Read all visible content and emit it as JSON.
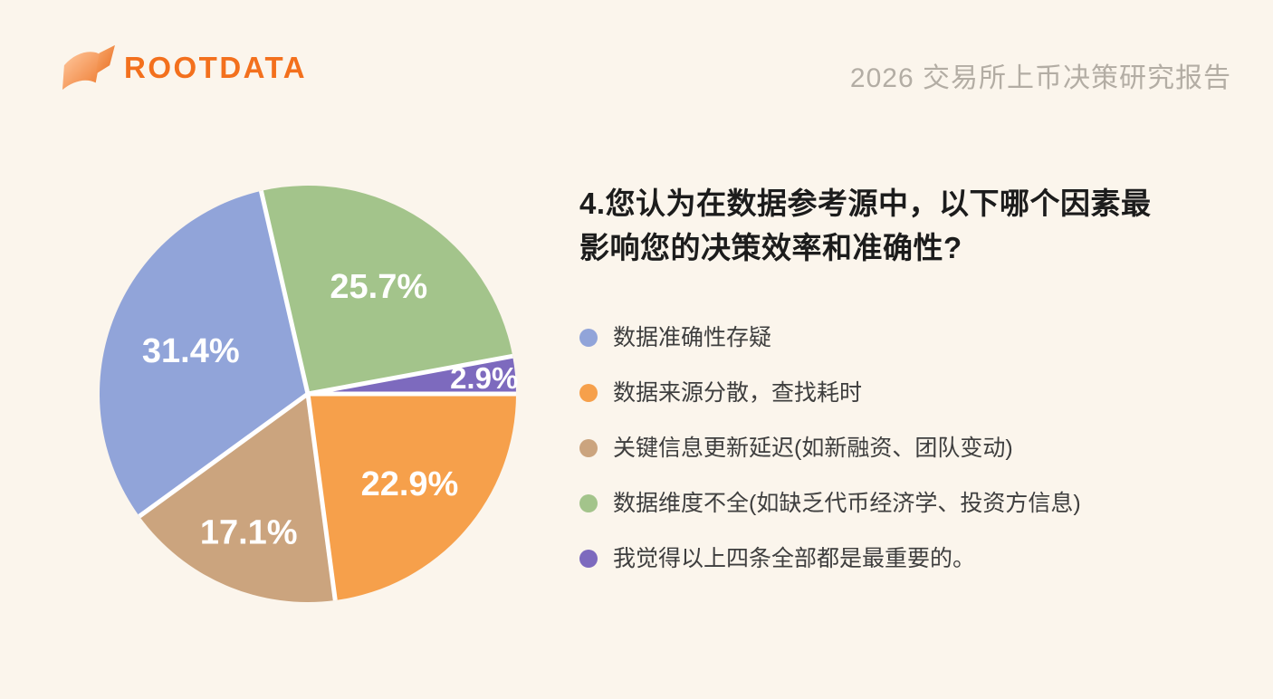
{
  "header": {
    "logo_text": "ROOTDATA",
    "report_title": "2026 交易所上币决策研究报告"
  },
  "question": {
    "title": "4.您认为在数据参考源中，以下哪个因素最影响您的决策效率和准确性?"
  },
  "chart_data": {
    "type": "pie",
    "title": "4.您认为在数据参考源中，以下哪个因素最影响您的决策效率和准确性?",
    "unit": "%",
    "direction": "clockwise",
    "start_angle_deg": -12.96,
    "legend_position": "right",
    "slices": [
      {
        "label": "数据维度不全(如缺乏代币经济学、投资方信息)",
        "value": 25.7,
        "display": "25.7%",
        "color": "#a3c48b",
        "label_r": 0.62
      },
      {
        "label": "我觉得以上四条全部都是最重要的。",
        "value": 2.9,
        "display": "2.9%",
        "color": "#7d6abe",
        "label_r": 0.85
      },
      {
        "label": "数据来源分散，查找耗时",
        "value": 22.9,
        "display": "22.9%",
        "color": "#f6a04b",
        "label_r": 0.65
      },
      {
        "label": "关键信息更新延迟(如新融资、团队变动)",
        "value": 17.1,
        "display": "17.1%",
        "color": "#cba47e",
        "label_r": 0.72
      },
      {
        "label": "数据准确性存疑",
        "value": 31.4,
        "display": "31.4%",
        "color": "#91a4d9",
        "label_r": 0.6
      }
    ],
    "legend_order": [
      4,
      2,
      3,
      0,
      1
    ]
  },
  "colors": {
    "background": "#fbf5ec",
    "slice_gap": "#ffffff",
    "slice_label_text": "#ffffff",
    "question_text": "#1c1c1c",
    "legend_text": "#3e3e3e",
    "report_title_text": "#b3ada4",
    "brand_orange": "#f3701d"
  }
}
